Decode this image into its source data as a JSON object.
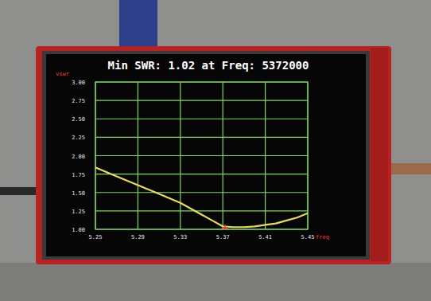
{
  "chart_data": {
    "type": "line",
    "title": "Min SWR: 1.02 at Freq: 5372000",
    "x_label": "freq",
    "y_label": "vswr",
    "series": [
      {
        "color": "#e6dc5a",
        "line_style": "solid",
        "x": [
          5.25,
          5.27,
          5.29,
          5.31,
          5.33,
          5.35,
          5.36,
          5.37,
          5.38,
          5.39,
          5.4,
          5.41,
          5.42,
          5.43,
          5.44,
          5.45
        ],
        "values": [
          1.84,
          1.72,
          1.6,
          1.48,
          1.36,
          1.2,
          1.12,
          1.04,
          1.03,
          1.03,
          1.04,
          1.06,
          1.08,
          1.12,
          1.16,
          1.22
        ]
      },
      {
        "type": "scatter",
        "color": "#ff3030",
        "marker": "plus",
        "x": [
          5.372
        ],
        "values": [
          1.02
        ]
      }
    ],
    "xlim": [
      5.25,
      5.45
    ],
    "ylim": [
      1,
      3
    ],
    "xticks": [
      5.25,
      5.29,
      5.33,
      5.37,
      5.41,
      5.45
    ],
    "yticks": [
      {
        "value": 1,
        "label": "1.00"
      },
      {
        "value": 1.25,
        "label": "1.25"
      },
      {
        "value": 1.5,
        "label": "1.50"
      },
      {
        "value": 1.75,
        "label": "1.75"
      },
      {
        "value": 2,
        "label": "2.00"
      },
      {
        "value": 2.25,
        "label": "2.25"
      },
      {
        "value": 2.5,
        "label": "2.50"
      },
      {
        "value": 2.75,
        "label": "2.75"
      },
      {
        "value": 3,
        "label": "3.00"
      }
    ],
    "grid": true
  }
}
